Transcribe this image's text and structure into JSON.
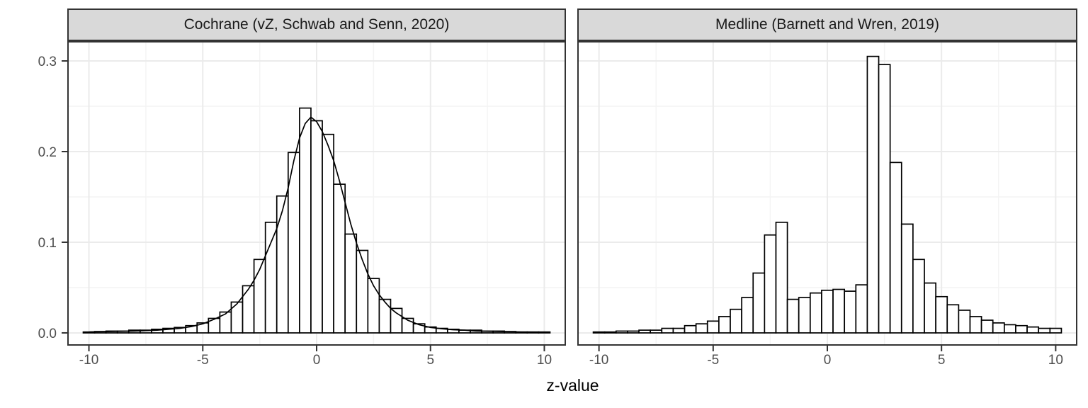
{
  "figure": {
    "background": "#ffffff"
  },
  "chart_data": {
    "type": "bar",
    "subtype": "faceted-histogram-of-z-values",
    "title": "",
    "xlabel": "z-value",
    "ylabel": "",
    "legend": "none",
    "grid": true,
    "xlim": [
      -10.95,
      10.95
    ],
    "ylim": [
      -0.0141,
      0.3219
    ],
    "bin_width": 0.5,
    "x_ticks": {
      "values": [
        -10,
        -5,
        0,
        5,
        10
      ],
      "labels": [
        "-10",
        "-5",
        "0",
        "5",
        "10"
      ]
    },
    "y_ticks": {
      "values": [
        0.0,
        0.1,
        0.2,
        0.3
      ],
      "labels": [
        "0.0",
        "0.1",
        "0.2",
        "0.3"
      ]
    },
    "x_minor": [
      -7.5,
      -2.5,
      2.5,
      7.5
    ],
    "y_minor": [
      0.05,
      0.15,
      0.25
    ],
    "bin_centers": [
      -10,
      -9.5,
      -9,
      -8.5,
      -8,
      -7.5,
      -7,
      -6.5,
      -6,
      -5.5,
      -5,
      -4.5,
      -4,
      -3.5,
      -3,
      -2.5,
      -2,
      -1.5,
      -1,
      -0.5,
      0,
      0.5,
      1,
      1.5,
      2,
      2.5,
      3,
      3.5,
      4,
      4.5,
      5,
      5.5,
      6,
      6.5,
      7,
      7.5,
      8,
      8.5,
      9,
      9.5,
      10
    ],
    "facets": [
      {
        "label": "Cochrane (vZ, Schwab and Senn, 2020)",
        "densities": [
          0.001,
          0.0015,
          0.002,
          0.002,
          0.003,
          0.003,
          0.004,
          0.005,
          0.006,
          0.008,
          0.011,
          0.016,
          0.023,
          0.034,
          0.052,
          0.081,
          0.122,
          0.151,
          0.199,
          0.248,
          0.234,
          0.219,
          0.164,
          0.109,
          0.091,
          0.06,
          0.037,
          0.027,
          0.016,
          0.01,
          0.0065,
          0.005,
          0.004,
          0.003,
          0.003,
          0.002,
          0.002,
          0.0015,
          0.001,
          0.001,
          0.001
        ],
        "density_curve": {
          "x": [
            -10,
            -9,
            -8,
            -7,
            -6,
            -5.5,
            -5,
            -4.5,
            -4,
            -3.5,
            -3,
            -2.75,
            -2.5,
            -2.25,
            -2,
            -1.75,
            -1.5,
            -1.25,
            -1,
            -0.75,
            -0.5,
            -0.25,
            0,
            0.25,
            0.5,
            0.75,
            1,
            1.25,
            1.5,
            1.75,
            2,
            2.25,
            2.5,
            2.75,
            3,
            3.25,
            3.5,
            3.75,
            4,
            4.5,
            5,
            5.5,
            6,
            6.5,
            7,
            8,
            9,
            10
          ],
          "y": [
            0.001,
            0.0015,
            0.002,
            0.003,
            0.005,
            0.007,
            0.01,
            0.015,
            0.021,
            0.032,
            0.048,
            0.058,
            0.07,
            0.085,
            0.1,
            0.115,
            0.135,
            0.16,
            0.19,
            0.215,
            0.231,
            0.238,
            0.233,
            0.222,
            0.207,
            0.19,
            0.168,
            0.144,
            0.12,
            0.099,
            0.081,
            0.065,
            0.052,
            0.042,
            0.034,
            0.027,
            0.022,
            0.018,
            0.014,
            0.009,
            0.006,
            0.0045,
            0.0035,
            0.003,
            0.002,
            0.0015,
            0.001,
            0.0008
          ]
        }
      },
      {
        "label": "Medline (Barnett and Wren, 2019)",
        "densities": [
          0.001,
          0.001,
          0.002,
          0.002,
          0.003,
          0.003,
          0.005,
          0.005,
          0.008,
          0.01,
          0.013,
          0.018,
          0.026,
          0.039,
          0.066,
          0.108,
          0.122,
          0.037,
          0.039,
          0.044,
          0.047,
          0.048,
          0.046,
          0.053,
          0.305,
          0.296,
          0.188,
          0.12,
          0.081,
          0.055,
          0.04,
          0.031,
          0.025,
          0.018,
          0.014,
          0.011,
          0.009,
          0.008,
          0.0065,
          0.005,
          0.005
        ],
        "density_curve": null
      }
    ],
    "colors": {
      "strip_background": "#D9D9D9",
      "strip_border": "#333333",
      "panel_border": "#333333",
      "grid_major": "#EBEBEB",
      "grid_minor": "#F4F4F4",
      "bar_fill": "#FFFFFF",
      "bar_stroke": "#000000",
      "curve_stroke": "#000000",
      "tick_mark": "#333333",
      "tick_label": "#4D4D4D",
      "axis_title": "#000000"
    }
  }
}
